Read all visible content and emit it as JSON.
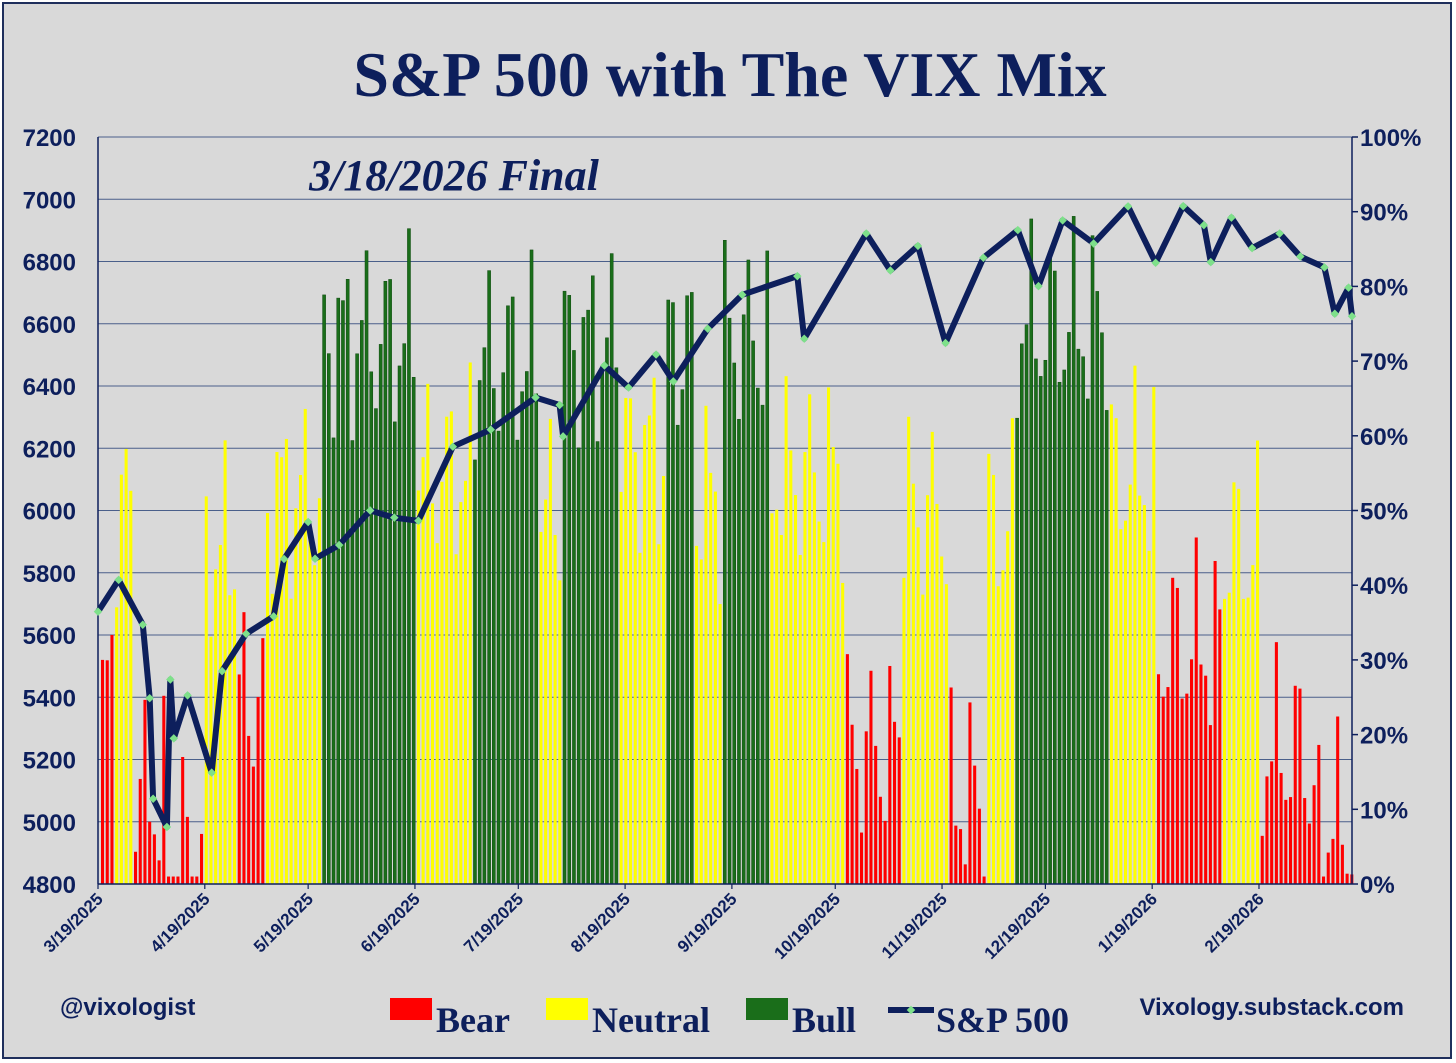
{
  "chart_data": {
    "type": "bar+line",
    "title": "S&P 500 with The VIX Mix",
    "subtitle": "3/18/2026 Final",
    "handle_left": "@vixologist",
    "handle_right": "Vixology.substack.com",
    "y_left": {
      "min": 4800,
      "max": 7200,
      "ticks": [
        "4800",
        "5000",
        "5200",
        "5400",
        "5600",
        "5800",
        "6000",
        "6200",
        "6400",
        "6600",
        "6800",
        "7000",
        "7200"
      ]
    },
    "y_right": {
      "min": 0,
      "max": 100,
      "ticks": [
        "0%",
        "10%",
        "20%",
        "30%",
        "40%",
        "50%",
        "60%",
        "70%",
        "80%",
        "90%",
        "100%"
      ]
    },
    "x_tick_labels": [
      "3/19/2025",
      "4/19/2025",
      "5/19/2025",
      "6/19/2025",
      "7/19/2025",
      "8/19/2025",
      "9/19/2025",
      "10/19/2025",
      "11/19/2025",
      "12/19/2025",
      "1/19/2026",
      "2/19/2026"
    ],
    "grid": "horizontal",
    "legend": [
      {
        "name": "Bear",
        "color": "#ff0000"
      },
      {
        "name": "Neutral",
        "color": "#ffff00"
      },
      {
        "name": "Bull",
        "color": "#1a6e1a"
      },
      {
        "name": "S&P 500",
        "color": "#0d1f5c"
      }
    ],
    "colors": {
      "bear": "#ff0000",
      "neutral": "#ffff00",
      "bull": "#1a6e1a",
      "line": "#0d1f5c",
      "marker": "#7ee08a",
      "title": "#0d1f5c",
      "background": "#d9d9d9"
    },
    "regime_segments": [
      [
        "bear",
        3,
        25
      ],
      [
        "neutral",
        4,
        50
      ],
      [
        "bear",
        7,
        12
      ],
      [
        "bear",
        8,
        5
      ],
      [
        "neutral",
        7,
        45
      ],
      [
        "bear",
        6,
        25
      ],
      [
        "neutral",
        12,
        52
      ],
      [
        "bull",
        20,
        73
      ],
      [
        "neutral",
        12,
        55
      ],
      [
        "bull",
        14,
        70
      ],
      [
        "neutral",
        5,
        50
      ],
      [
        "bull",
        12,
        72
      ],
      [
        "neutral",
        10,
        58
      ],
      [
        "bull",
        6,
        72
      ],
      [
        "neutral",
        6,
        52
      ],
      [
        "bull",
        10,
        73
      ],
      [
        "neutral",
        16,
        55
      ],
      [
        "bear",
        12,
        18
      ],
      [
        "neutral",
        10,
        50
      ],
      [
        "bear",
        8,
        12
      ],
      [
        "neutral",
        6,
        48
      ],
      [
        "bull",
        20,
        75
      ],
      [
        "neutral",
        10,
        55
      ],
      [
        "bear",
        14,
        32
      ],
      [
        "neutral",
        8,
        45
      ],
      [
        "bear",
        10,
        18
      ],
      [
        "bear",
        10,
        8
      ]
    ],
    "sp500": [
      [
        "3/19/2025",
        5675
      ],
      [
        "3/25/2025",
        5777
      ],
      [
        "4/1/2025",
        5633
      ],
      [
        "4/3/2025",
        5397
      ],
      [
        "4/4/2025",
        5074
      ],
      [
        "4/8/2025",
        4983
      ],
      [
        "4/9/2025",
        5457
      ],
      [
        "4/10/2025",
        5268
      ],
      [
        "4/14/2025",
        5406
      ],
      [
        "4/21/2025",
        5158
      ],
      [
        "4/24/2025",
        5484
      ],
      [
        "5/1/2025",
        5604
      ],
      [
        "5/9/2025",
        5660
      ],
      [
        "5/12/2025",
        5844
      ],
      [
        "5/19/2025",
        5963
      ],
      [
        "5/21/2025",
        5845
      ],
      [
        "5/28/2025",
        5889
      ],
      [
        "6/6/2025",
        6000
      ],
      [
        "6/13/2025",
        5977
      ],
      [
        "6/20/2025",
        5967
      ],
      [
        "6/30/2025",
        6205
      ],
      [
        "7/11/2025",
        6260
      ],
      [
        "7/24/2025",
        6363
      ],
      [
        "7/31/2025",
        6339
      ],
      [
        "8/1/2025",
        6238
      ],
      [
        "8/13/2025",
        6466
      ],
      [
        "8/20/2025",
        6395
      ],
      [
        "8/28/2025",
        6501
      ],
      [
        "9/2/2025",
        6415
      ],
      [
        "9/12/2025",
        6584
      ],
      [
        "9/22/2025",
        6693
      ],
      [
        "10/8/2025",
        6753
      ],
      [
        "10/10/2025",
        6552
      ],
      [
        "10/28/2025",
        6890
      ],
      [
        "11/4/2025",
        6771
      ],
      [
        "11/12/2025",
        6850
      ],
      [
        "11/20/2025",
        6538
      ],
      [
        "12/1/2025",
        6812
      ],
      [
        "12/11/2025",
        6901
      ],
      [
        "12/17/2025",
        6721
      ],
      [
        "12/24/2025",
        6932
      ],
      [
        "1/2/2026",
        6858
      ],
      [
        "1/12/2026",
        6977
      ],
      [
        "1/20/2026",
        6796
      ],
      [
        "1/28/2026",
        6978
      ],
      [
        "2/3/2026",
        6917
      ],
      [
        "2/5/2026",
        6798
      ],
      [
        "2/11/2026",
        6941
      ],
      [
        "2/17/2026",
        6843
      ],
      [
        "2/25/2026",
        6890
      ],
      [
        "3/3/2026",
        6816
      ],
      [
        "3/10/2026",
        6781
      ],
      [
        "3/13/2026",
        6632
      ],
      [
        "3/17/2026",
        6716
      ],
      [
        "3/18/2026",
        6624
      ]
    ]
  }
}
